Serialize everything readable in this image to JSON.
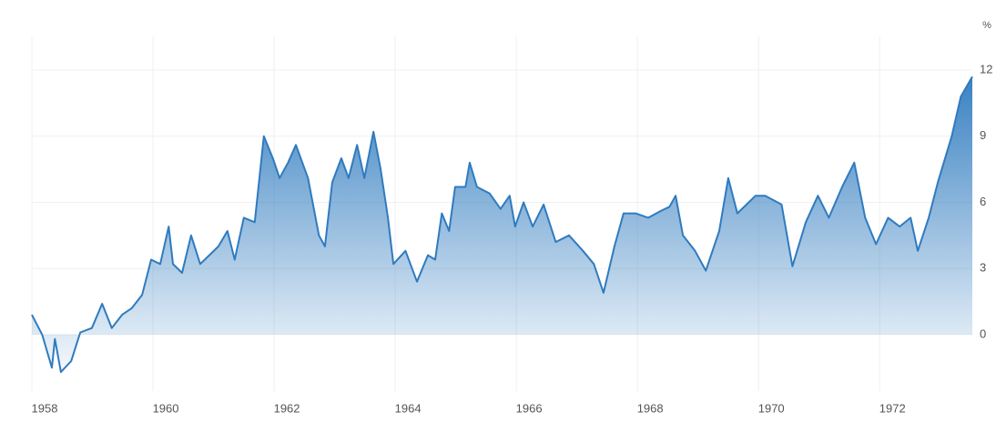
{
  "chart_data": {
    "type": "area",
    "y_unit": "%",
    "x": [
      1958.0,
      1958.17,
      1958.33,
      1958.38,
      1958.48,
      1958.65,
      1958.8,
      1958.99,
      1959.16,
      1959.32,
      1959.49,
      1959.65,
      1959.82,
      1959.97,
      1960.12,
      1960.26,
      1960.33,
      1960.48,
      1960.63,
      1960.78,
      1960.93,
      1961.08,
      1961.23,
      1961.35,
      1961.5,
      1961.68,
      1961.83,
      1961.98,
      1962.09,
      1962.23,
      1962.36,
      1962.56,
      1962.74,
      1962.84,
      1962.96,
      1963.11,
      1963.23,
      1963.37,
      1963.49,
      1963.64,
      1963.76,
      1963.88,
      1963.97,
      1964.17,
      1964.36,
      1964.54,
      1964.66,
      1964.77,
      1964.89,
      1964.99,
      1965.16,
      1965.23,
      1965.35,
      1965.56,
      1965.74,
      1965.89,
      1965.98,
      1966.12,
      1966.27,
      1966.45,
      1966.65,
      1966.87,
      1967.1,
      1967.28,
      1967.44,
      1967.62,
      1967.77,
      1967.97,
      1968.18,
      1968.38,
      1968.53,
      1968.63,
      1968.75,
      1968.95,
      1969.13,
      1969.35,
      1969.5,
      1969.65,
      1969.8,
      1969.95,
      1970.11,
      1970.38,
      1970.56,
      1970.78,
      1970.98,
      1971.16,
      1971.38,
      1971.58,
      1971.76,
      1971.94,
      1972.14,
      1972.33,
      1972.51,
      1972.63,
      1972.81,
      1972.96,
      1973.19,
      1973.34,
      1973.53
    ],
    "values": [
      0.9,
      0,
      -1.5,
      -0.2,
      -1.7,
      -1.2,
      0.1,
      0.3,
      1.4,
      0.3,
      0.9,
      1.2,
      1.8,
      3.4,
      3.2,
      4.9,
      3.2,
      2.8,
      4.5,
      3.2,
      3.6,
      4.0,
      4.7,
      3.4,
      5.3,
      5.1,
      9.0,
      8.0,
      7.1,
      7.8,
      8.6,
      7.1,
      4.5,
      4.0,
      6.9,
      8.0,
      7.1,
      8.6,
      7.1,
      9.2,
      7.5,
      5.3,
      3.2,
      3.8,
      2.4,
      3.6,
      3.4,
      5.5,
      4.7,
      6.7,
      6.7,
      7.8,
      6.7,
      6.4,
      5.7,
      6.3,
      4.9,
      6.0,
      4.9,
      5.9,
      4.2,
      4.5,
      3.8,
      3.2,
      1.9,
      4.0,
      5.5,
      5.5,
      5.3,
      5.6,
      5.8,
      6.3,
      4.5,
      3.8,
      2.9,
      4.7,
      7.1,
      5.5,
      5.9,
      6.3,
      6.3,
      5.9,
      3.1,
      5.1,
      6.3,
      5.3,
      6.7,
      7.8,
      5.3,
      4.1,
      5.3,
      4.9,
      5.3,
      3.8,
      5.3,
      6.9,
      9.0,
      10.8,
      11.7
    ],
    "color": "#2f7bbf",
    "xlim": [
      1958,
      1973.53
    ],
    "xticks": [
      1958,
      1960,
      1962,
      1964,
      1966,
      1968,
      1970,
      1972
    ],
    "ylim": [
      -2.56,
      12.7
    ],
    "yticks": [
      0,
      3,
      6,
      9,
      12
    ],
    "grid": true
  }
}
